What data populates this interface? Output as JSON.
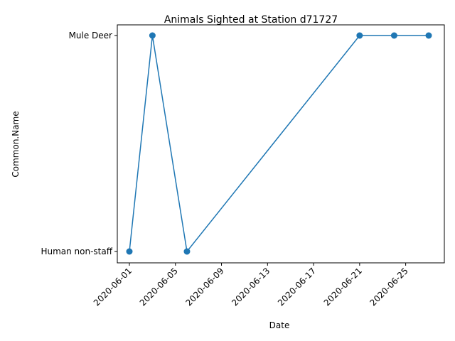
{
  "chart_data": {
    "type": "line",
    "title": "Animals Sighted at Station d71727",
    "xlabel": "Date",
    "ylabel": "Common.Name",
    "y_categories": [
      "Human non-staff",
      "Mule Deer"
    ],
    "x_ticks": [
      "2020-06-01",
      "2020-06-05",
      "2020-06-09",
      "2020-06-13",
      "2020-06-17",
      "2020-06-21",
      "2020-06-25"
    ],
    "series": [
      {
        "x": [
          "2020-06-01",
          "2020-06-03",
          "2020-06-06",
          "2020-06-21",
          "2020-06-24",
          "2020-06-27"
        ],
        "y": [
          "Human non-staff",
          "Mule Deer",
          "Human non-staff",
          "Mule Deer",
          "Mule Deer",
          "Mule Deer"
        ],
        "color": "#1f77b4",
        "marker": "circle"
      }
    ],
    "xlim": [
      "2020-05-31",
      "2020-06-28"
    ],
    "grid": false,
    "legend": "none"
  }
}
